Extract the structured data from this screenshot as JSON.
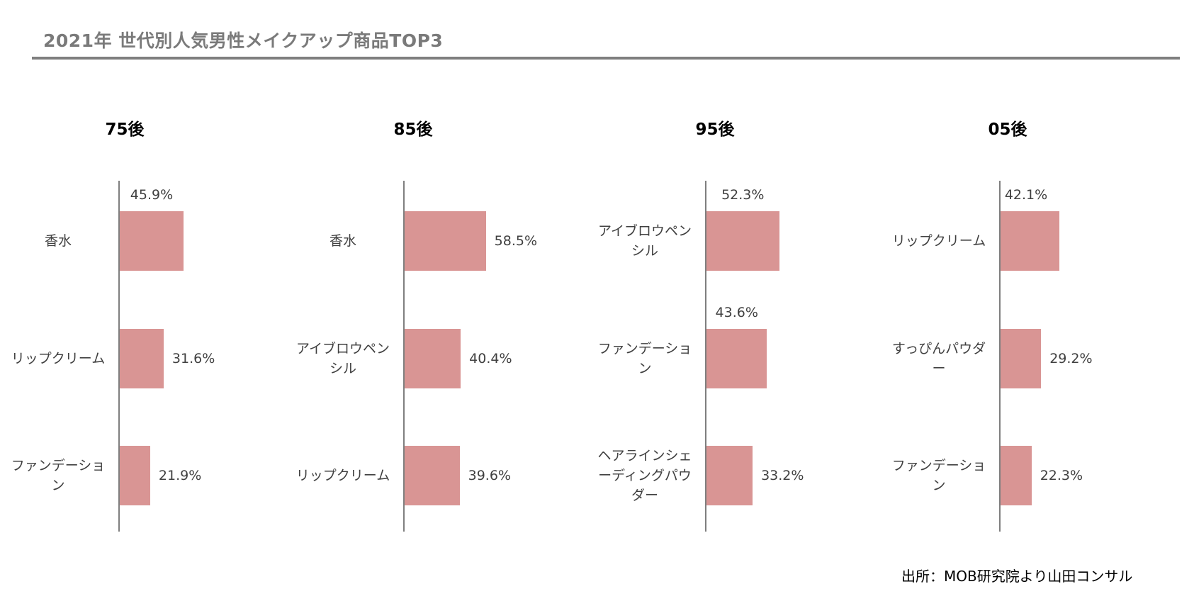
{
  "title": "2021年 世代別人気男性メイクアップ商品TOP3",
  "source": "出所：MOB研究院より山田コンサル",
  "colors": {
    "bar": "#d99594",
    "axis": "#7f7f7f",
    "title": "#7a7a7a"
  },
  "chart_data": [
    {
      "type": "bar",
      "orientation": "horizontal",
      "title": "75後",
      "categories": [
        "香水",
        "リップクリーム",
        "ファンデーション"
      ],
      "values": [
        45.9,
        31.6,
        21.9
      ],
      "data_labels": [
        "45.9%",
        "31.6%",
        "21.9%"
      ],
      "unit": "%",
      "grid": false
    },
    {
      "type": "bar",
      "orientation": "horizontal",
      "title": "85後",
      "categories": [
        "香水",
        "アイブロウペンシル",
        "リップクリーム"
      ],
      "values": [
        58.5,
        40.4,
        39.6
      ],
      "data_labels": [
        "58.5%",
        "40.4%",
        "39.6%"
      ],
      "unit": "%",
      "grid": false
    },
    {
      "type": "bar",
      "orientation": "horizontal",
      "title": "95後",
      "categories": [
        "アイブロウペンシル",
        "ファンデーション",
        "ヘアラインシェーディングパウダー"
      ],
      "values": [
        52.3,
        43.6,
        33.2
      ],
      "data_labels": [
        "52.3%",
        "43.6%",
        "33.2%"
      ],
      "unit": "%",
      "grid": false
    },
    {
      "type": "bar",
      "orientation": "horizontal",
      "title": "05後",
      "categories": [
        "リップクリーム",
        "すっぴんパウダー",
        "ファンデーション"
      ],
      "values": [
        42.1,
        29.2,
        22.3
      ],
      "data_labels": [
        "42.1%",
        "29.2%",
        "22.3%"
      ],
      "unit": "%",
      "grid": false
    }
  ]
}
